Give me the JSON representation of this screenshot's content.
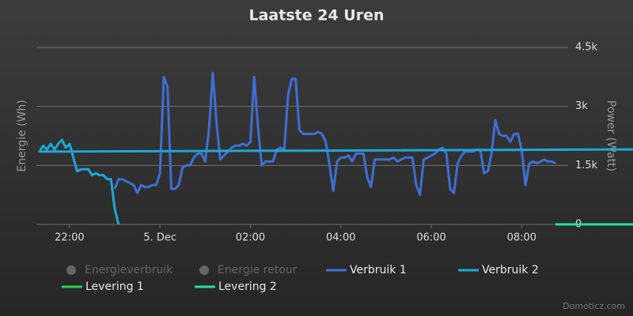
{
  "chart_data": {
    "type": "line",
    "title": "Laatste 24 Uren",
    "y_label": "Energie (Wh)",
    "y2_label": "Power (Watt)",
    "credits": "Domoticz.com",
    "xlim": [
      "21:16",
      "08:49"
    ],
    "xticks": [
      "22:00",
      {
        "value": "00:00",
        "label": "5. Dec"
      },
      "02:00",
      "04:00",
      "06:00",
      "08:00"
    ],
    "ylim": [
      0,
      4500
    ],
    "yticks": [
      0,
      {
        "value": 1500,
        "label": "1.5k"
      },
      {
        "value": 3000,
        "label": "3k"
      },
      {
        "value": 4500,
        "label": "4.5k"
      }
    ],
    "grid": true,
    "series": [
      {
        "name": "Energieverbruik",
        "visible": false
      },
      {
        "name": "Energie retour",
        "visible": false
      },
      {
        "name": "Verbruik 1",
        "color": "#3e6fd4",
        "x": [
          "23:00",
          "23:05",
          "23:10",
          "23:15",
          "23:20",
          "23:25",
          "23:30",
          "23:35",
          "23:40",
          "23:45",
          "23:50",
          "23:55",
          "00:00",
          "00:05",
          "00:10",
          "00:15",
          "00:20",
          "00:25",
          "00:30",
          "00:35",
          "00:40",
          "00:45",
          "00:50",
          "00:55",
          "01:00",
          "01:05",
          "01:10",
          "01:15",
          "01:20",
          "01:25",
          "01:30",
          "01:35",
          "01:40",
          "01:45",
          "01:50",
          "01:55",
          "02:00",
          "02:05",
          "02:10",
          "02:15",
          "02:20",
          "02:25",
          "02:30",
          "02:35",
          "02:40",
          "02:45",
          "02:50",
          "02:55",
          "03:00",
          "03:05",
          "03:10",
          "03:15",
          "03:20",
          "03:25",
          "03:30",
          "03:35",
          "03:40",
          "03:45",
          "03:50",
          "03:55",
          "04:00",
          "04:05",
          "04:10",
          "04:15",
          "04:20",
          "04:25",
          "04:30",
          "04:35",
          "04:40",
          "04:45",
          "04:50",
          "04:55",
          "05:00",
          "05:05",
          "05:10",
          "05:15",
          "05:20",
          "05:25",
          "05:30",
          "05:35",
          "05:40",
          "05:45",
          "05:50",
          "05:55",
          "06:00",
          "06:05",
          "06:10",
          "06:15",
          "06:20",
          "06:25",
          "06:30",
          "06:35",
          "06:40",
          "06:45",
          "06:50",
          "06:55",
          "07:00",
          "07:05",
          "07:10",
          "07:15",
          "07:20",
          "07:25",
          "07:30",
          "07:35",
          "07:40",
          "07:45",
          "07:50",
          "07:55",
          "08:00",
          "08:05",
          "08:10",
          "08:15",
          "08:20",
          "08:25",
          "08:30",
          "08:35",
          "08:40",
          "08:45"
        ],
        "values": [
          900,
          1150,
          1150,
          1100,
          1050,
          1000,
          800,
          1000,
          950,
          950,
          1000,
          1000,
          1300,
          3750,
          3500,
          900,
          900,
          1000,
          1450,
          1500,
          1500,
          1700,
          1800,
          1800,
          1600,
          2400,
          3850,
          2600,
          1650,
          1750,
          1850,
          1950,
          2000,
          2000,
          2050,
          2000,
          2100,
          3750,
          2500,
          1500,
          1600,
          1600,
          1600,
          1900,
          1950,
          1900,
          3300,
          3700,
          3700,
          2400,
          2300,
          2300,
          2300,
          2300,
          2350,
          2300,
          2100,
          1500,
          850,
          1600,
          1700,
          1700,
          1750,
          1600,
          1800,
          1800,
          1800,
          1200,
          950,
          1650,
          1650,
          1650,
          1650,
          1650,
          1700,
          1600,
          1650,
          1700,
          1700,
          1700,
          1000,
          750,
          1650,
          1700,
          1750,
          1800,
          1900,
          1950,
          1800,
          900,
          800,
          1550,
          1750,
          1850,
          1850,
          1850,
          1900,
          1900,
          1300,
          1350,
          1800,
          2650,
          2300,
          2250,
          2250,
          2100,
          2300,
          2300,
          1900,
          1000,
          1550,
          1600,
          1550,
          1600,
          1650,
          1600,
          1600,
          1550
        ]
      },
      {
        "name": "Verbruik 2",
        "color": "#1fa6d8",
        "x": [
          "21:15",
          "21:20",
          "21:25",
          "21:30",
          "21:35",
          "21:40",
          "21:45",
          "21:50",
          "21:55",
          "22:00",
          "22:05",
          "22:10",
          "22:15",
          "22:20",
          "22:25",
          "22:30",
          "22:35",
          "22:40",
          "22:45",
          "22:50",
          "22:55",
          "23:00",
          "23:05"
        ],
        "values": [
          1950,
          1850,
          2000,
          1900,
          2050,
          1900,
          2050,
          2150,
          1950,
          2050,
          1700,
          1350,
          1400,
          1400,
          1400,
          1250,
          1300,
          1250,
          1250,
          1150,
          1150,
          400,
          0
        ]
      },
      {
        "name": "Levering 1",
        "color": "#33cc55",
        "x": [
          "21:15",
          "08:45"
        ],
        "values": [
          0,
          0
        ]
      },
      {
        "name": "Levering 2",
        "color": "#22ddaa",
        "x": [
          "21:15",
          "08:45"
        ],
        "values": [
          0,
          0
        ]
      }
    ]
  }
}
